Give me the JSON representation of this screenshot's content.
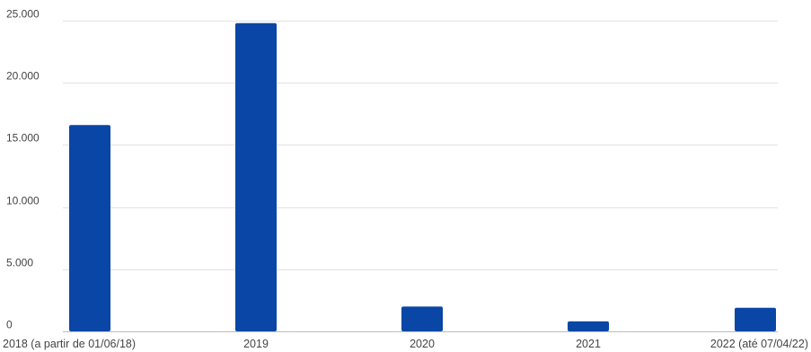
{
  "chart_data": {
    "type": "bar",
    "categories": [
      "2018 (a partir de 01/06/18)",
      "2019",
      "2020",
      "2021",
      "2022 (até 07/04/22)"
    ],
    "values": [
      16600,
      24800,
      2000,
      800,
      1900
    ],
    "ylim": [
      0,
      25000
    ],
    "yticks": [
      0,
      5000,
      10000,
      15000,
      20000,
      25000
    ],
    "ytick_labels": [
      "0",
      "5.000",
      "10.000",
      "15.000",
      "20.000",
      "25.000"
    ],
    "title": "",
    "xlabel": "",
    "ylabel": "",
    "grid": true,
    "legend": "none",
    "bar_color": "#0a46a5"
  }
}
